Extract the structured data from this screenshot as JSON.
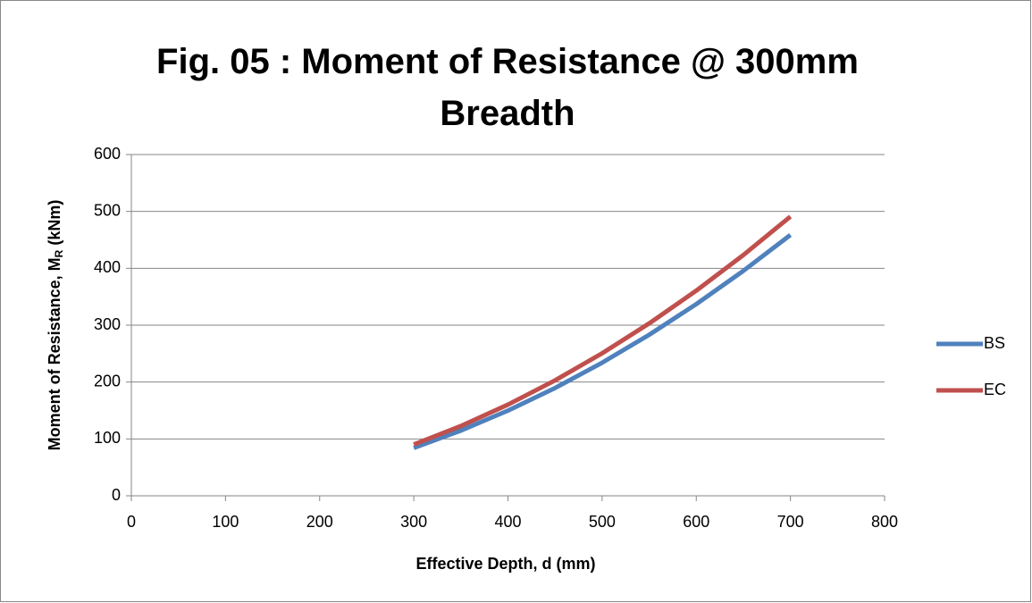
{
  "chart_data": {
    "type": "line",
    "title": "Fig. 05 : Moment of Resistance @ 300mm Breadth",
    "xlabel": "Effective Depth, d (mm)",
    "ylabel": [
      "Moment of Resistance, M",
      "R",
      " (kNm)"
    ],
    "x": [
      300,
      350,
      400,
      450,
      500,
      550,
      600,
      650,
      700
    ],
    "series": [
      {
        "name": "BS",
        "color": "#4f81bd",
        "values": [
          84.2,
          114.7,
          149.8,
          189.5,
          234,
          283.1,
          337,
          395.5,
          458.6
        ]
      },
      {
        "name": "EC",
        "color": "#c0504d",
        "values": [
          90.2,
          122.7,
          160.3,
          202.9,
          250.5,
          303.1,
          360.7,
          423.3,
          491
        ]
      }
    ],
    "xlim": [
      0,
      800
    ],
    "xticks": [
      0,
      100,
      200,
      300,
      400,
      500,
      600,
      700,
      800
    ],
    "ylim": [
      0,
      600
    ],
    "yticks": [
      0,
      100,
      200,
      300,
      400,
      500,
      600
    ],
    "grid": true,
    "legend": "right"
  }
}
